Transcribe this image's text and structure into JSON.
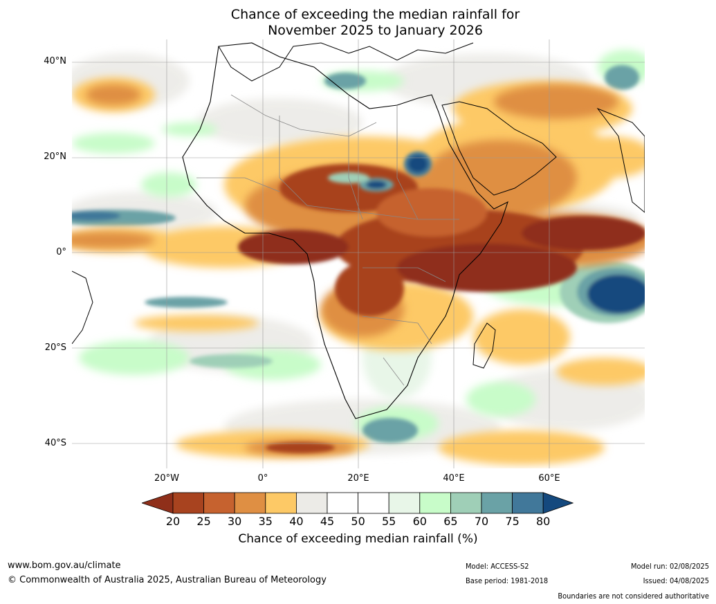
{
  "title_line1": "Chance of exceeding the median rainfall for",
  "title_line2": "November 2025 to January 2026",
  "lat_labels": [
    "40°N",
    "20°N",
    "0°",
    "20°S",
    "40°S"
  ],
  "lon_labels": [
    "20°W",
    "0°",
    "20°E",
    "40°E",
    "60°E"
  ],
  "colorbar": {
    "ticks": [
      "20",
      "25",
      "30",
      "35",
      "40",
      "45",
      "50",
      "55",
      "60",
      "65",
      "70",
      "75",
      "80"
    ],
    "colors": [
      "#8f2f1a",
      "#a8431f",
      "#c6622f",
      "#df8f43",
      "#fdc966",
      "#ecebe7",
      "#ffffff",
      "#ffffff",
      "#e8f6e8",
      "#c8fcc9",
      "#9fcfb7",
      "#6aa2a6",
      "#41789a",
      "#14497e"
    ],
    "label": "Chance of exceeding median rainfall (%)"
  },
  "footer": {
    "url": "www.bom.gov.au/climate",
    "copyright": "© Commonwealth of Australia 2025, Australian Bureau of Meteorology",
    "model": "Model: ACCESS-S2",
    "base_period": "Base period: 1981-2018",
    "model_run": "Model run: 02/08/2025",
    "issued": "Issued: 04/08/2025",
    "disclaimer": "Boundaries are not considered authoritative"
  }
}
